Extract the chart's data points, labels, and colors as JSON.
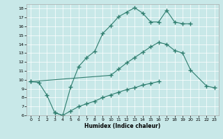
{
  "xlabel": "Humidex (Indice chaleur)",
  "background_color": "#c8e8e8",
  "line_color": "#2e7d6e",
  "xlim": [
    -0.5,
    23.5
  ],
  "ylim": [
    6,
    18.5
  ],
  "xticks": [
    0,
    1,
    2,
    3,
    4,
    5,
    6,
    7,
    8,
    9,
    10,
    11,
    12,
    13,
    14,
    15,
    16,
    17,
    18,
    19,
    20,
    21,
    22,
    23
  ],
  "yticks": [
    6,
    7,
    8,
    9,
    10,
    11,
    12,
    13,
    14,
    15,
    16,
    17,
    18
  ],
  "line1_x": [
    0,
    1,
    2,
    3,
    4,
    5,
    6,
    7,
    8,
    9,
    10,
    11,
    12,
    13,
    14,
    15,
    16,
    17,
    18,
    19,
    20
  ],
  "line1_y": [
    9.8,
    9.7,
    8.3,
    6.3,
    6.0,
    9.2,
    11.5,
    12.5,
    13.2,
    15.2,
    16.1,
    17.1,
    17.6,
    18.1,
    17.5,
    16.5,
    16.5,
    17.8,
    16.5,
    16.3,
    16.3
  ],
  "line2_x": [
    0,
    10,
    11,
    12,
    13,
    14,
    15,
    16,
    17,
    18,
    19,
    20,
    22,
    23
  ],
  "line2_y": [
    9.8,
    10.5,
    11.2,
    11.9,
    12.5,
    13.1,
    13.7,
    14.2,
    14.0,
    13.3,
    13.0,
    11.1,
    9.3,
    9.1
  ],
  "line3_x": [
    3,
    4,
    5,
    6,
    7,
    8,
    9,
    10,
    11,
    12,
    13,
    14,
    15,
    16,
    17,
    18,
    19,
    20,
    21,
    22,
    23
  ],
  "line3_y": [
    6.3,
    6.0,
    6.5,
    7.0,
    7.3,
    7.6,
    8.0,
    8.3,
    8.6,
    8.9,
    9.1,
    9.4,
    9.6,
    9.8,
    null,
    null,
    null,
    null,
    null,
    null,
    null
  ]
}
